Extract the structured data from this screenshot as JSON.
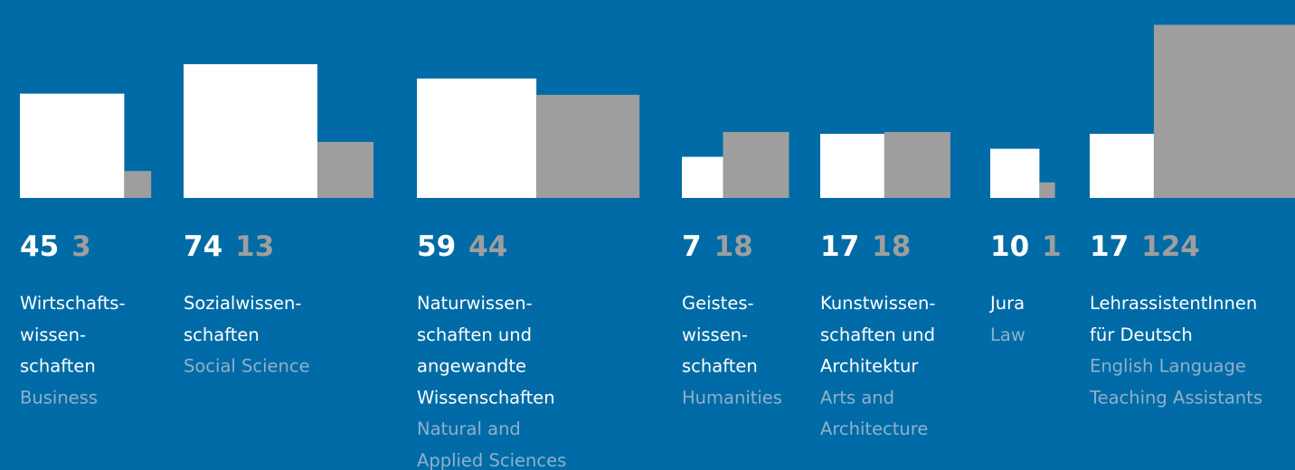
{
  "chart_data": {
    "type": "squares",
    "categories": [
      [
        "Wirtschafts-",
        "wissen-",
        "schaften"
      ],
      [
        "Sozialwissen-",
        "schaften"
      ],
      [
        "Naturwissen-",
        "schaften und",
        "angewandte",
        "Wissenschaften"
      ],
      [
        "Geistes-",
        "wissen-",
        "schaften"
      ],
      [
        "Kunstwissen-",
        "schaften und",
        "Architektur"
      ],
      [
        "Jura"
      ],
      [
        "LehrassistentInnen",
        "für Deutsch"
      ]
    ],
    "subcategories": [
      [
        "Business"
      ],
      [
        "Social Science"
      ],
      [
        "Natural and",
        "Applied Sciences"
      ],
      [
        "Humanities"
      ],
      [
        "Arts and",
        "Architecture"
      ],
      [
        "Law"
      ],
      [
        "English Language",
        "Teaching Assistants"
      ]
    ],
    "series": [
      {
        "color": "#ffffff",
        "values": [
          45,
          74,
          59,
          7,
          17,
          10,
          17
        ]
      },
      {
        "color": "#9e9e9e",
        "values": [
          3,
          13,
          44,
          18,
          18,
          1,
          124
        ]
      }
    ]
  }
}
